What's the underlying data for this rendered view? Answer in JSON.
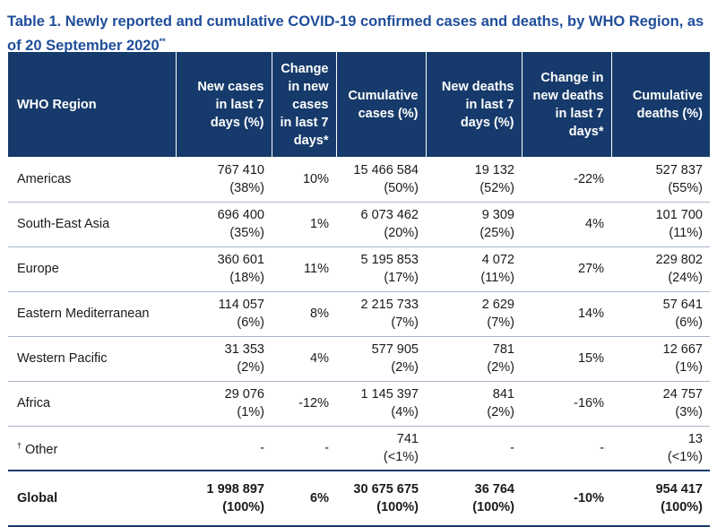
{
  "caption": {
    "text": "Table 1. Newly reported and cumulative COVID-19 confirmed cases and deaths, by WHO Region, as of 20 September 2020",
    "footnote_mark": "**"
  },
  "table": {
    "headers": {
      "region": "WHO Region",
      "new_cases": "New cases in last 7 days (%)",
      "change_cases": "Change in new cases in last 7 days*",
      "cum_cases": "Cumulative cases (%)",
      "new_deaths": "New deaths in last 7 days (%)",
      "change_deaths": "Change in new deaths in last 7 days*",
      "cum_deaths": "Cumulative deaths (%)"
    },
    "rows": [
      {
        "region": "Americas",
        "new_cases": "767 410",
        "new_cases_pct": "(38%)",
        "change_cases": "10%",
        "cum_cases": "15 466 584",
        "cum_cases_pct": "(50%)",
        "new_deaths": "19 132",
        "new_deaths_pct": "(52%)",
        "change_deaths": "-22%",
        "cum_deaths": "527 837",
        "cum_deaths_pct": "(55%)"
      },
      {
        "region": "South-East Asia",
        "new_cases": "696 400",
        "new_cases_pct": "(35%)",
        "change_cases": "1%",
        "cum_cases": "6 073 462",
        "cum_cases_pct": "(20%)",
        "new_deaths": "9 309",
        "new_deaths_pct": "(25%)",
        "change_deaths": "4%",
        "cum_deaths": "101 700",
        "cum_deaths_pct": "(11%)"
      },
      {
        "region": "Europe",
        "new_cases": "360 601",
        "new_cases_pct": "(18%)",
        "change_cases": "11%",
        "cum_cases": "5 195 853",
        "cum_cases_pct": "(17%)",
        "new_deaths": "4 072",
        "new_deaths_pct": "(11%)",
        "change_deaths": "27%",
        "cum_deaths": "229 802",
        "cum_deaths_pct": "(24%)"
      },
      {
        "region": "Eastern Mediterranean",
        "new_cases": "114 057",
        "new_cases_pct": "(6%)",
        "change_cases": "8%",
        "cum_cases": "2 215 733",
        "cum_cases_pct": "(7%)",
        "new_deaths": "2 629",
        "new_deaths_pct": "(7%)",
        "change_deaths": "14%",
        "cum_deaths": "57 641",
        "cum_deaths_pct": "(6%)"
      },
      {
        "region": "Western Pacific",
        "new_cases": "31 353",
        "new_cases_pct": "(2%)",
        "change_cases": "4%",
        "cum_cases": "577 905",
        "cum_cases_pct": "(2%)",
        "new_deaths": "781",
        "new_deaths_pct": "(2%)",
        "change_deaths": "15%",
        "cum_deaths": "12 667",
        "cum_deaths_pct": "(1%)"
      },
      {
        "region": "Africa",
        "new_cases": "29 076",
        "new_cases_pct": "(1%)",
        "change_cases": "-12%",
        "cum_cases": "1 145 397",
        "cum_cases_pct": "(4%)",
        "new_deaths": "841",
        "new_deaths_pct": "(2%)",
        "change_deaths": "-16%",
        "cum_deaths": "24 757",
        "cum_deaths_pct": "(3%)"
      }
    ],
    "other": {
      "mark": "†",
      "region": "Other",
      "new_cases": "-",
      "change_cases": "-",
      "cum_cases": "741",
      "cum_cases_pct": "(<1%)",
      "new_deaths": "-",
      "change_deaths": "-",
      "cum_deaths": "13",
      "cum_deaths_pct": "(<1%)"
    },
    "total": {
      "region": "Global",
      "new_cases": "1 998 897",
      "new_cases_pct": "(100%)",
      "change_cases": "6%",
      "cum_cases": "30 675 675",
      "cum_cases_pct": "(100%)",
      "new_deaths": "36 764",
      "new_deaths_pct": "(100%)",
      "change_deaths": "-10%",
      "cum_deaths": "954 417",
      "cum_deaths_pct": "(100%)"
    }
  },
  "colors": {
    "title": "#1f4e9a",
    "header_bg": "#163a6b",
    "header_text": "#ffffff",
    "rule": "#a9b7c9"
  }
}
